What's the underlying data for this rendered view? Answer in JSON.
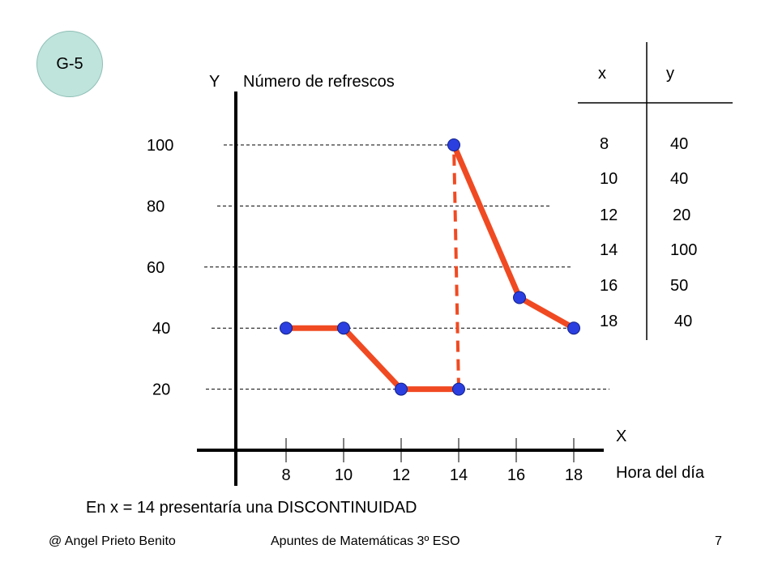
{
  "badge": "G-5",
  "chart_data": {
    "type": "line",
    "ylabel_letter": "Y",
    "ylabel": "Número de refrescos",
    "xlabel_letter": "X",
    "xlabel": "Hora del día",
    "x": [
      8,
      10,
      12,
      14,
      14,
      16,
      18
    ],
    "y": [
      40,
      40,
      20,
      20,
      100,
      50,
      40
    ],
    "xticks": [
      8,
      10,
      12,
      14,
      16,
      18
    ],
    "yticks": [
      20,
      40,
      60,
      80,
      100
    ],
    "discontinuity_x": 14,
    "line_color": "#f04a22",
    "marker_color": "#2b3fe0",
    "gridlines": "dashed horizontal at y ticks"
  },
  "table": {
    "headers": [
      "x",
      "y"
    ],
    "rows": [
      [
        "8",
        "40"
      ],
      [
        "10",
        "40"
      ],
      [
        "12",
        "20"
      ],
      [
        "14",
        "100"
      ],
      [
        "16",
        "50"
      ],
      [
        "18",
        "40"
      ]
    ]
  },
  "note": "En x = 14 presentaría una DISCONTINUIDAD",
  "footer": {
    "author": "@ Angel Prieto Benito",
    "course": "Apuntes de Matemáticas 3º ESO",
    "page": "7"
  }
}
